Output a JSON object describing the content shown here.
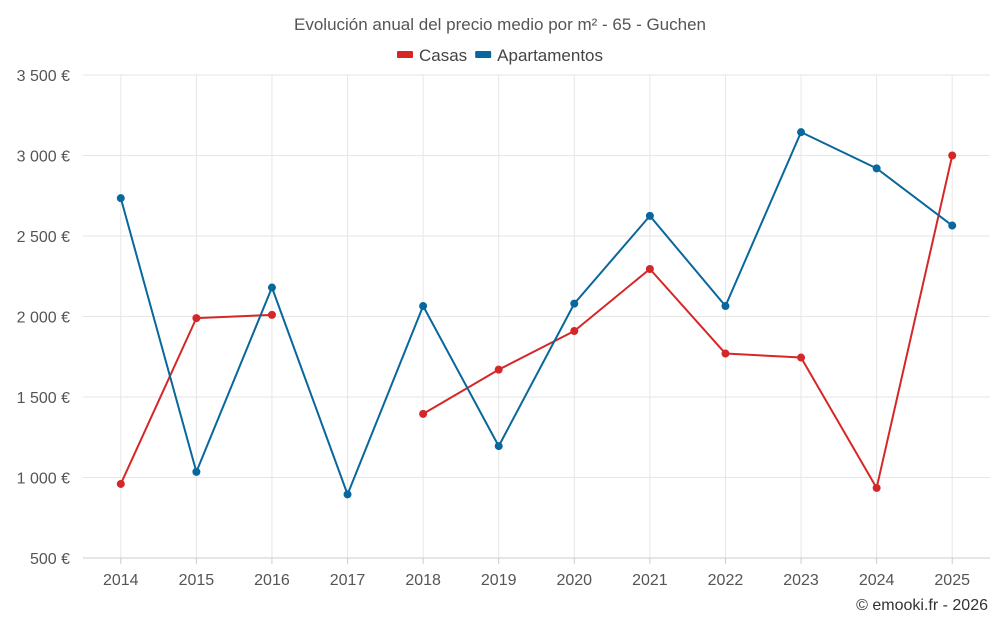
{
  "chart_data": {
    "type": "line",
    "title": "Evolución anual del precio medio por m² - 65 - Guchen",
    "x": [
      "2014",
      "2015",
      "2016",
      "2017",
      "2018",
      "2019",
      "2020",
      "2021",
      "2022",
      "2023",
      "2024",
      "2025"
    ],
    "ylim": [
      500,
      3500
    ],
    "yticks": [
      500,
      1000,
      1500,
      2000,
      2500,
      3000,
      3500
    ],
    "ytick_labels": [
      "500 €",
      "1 000 €",
      "1 500 €",
      "2 000 €",
      "2 500 €",
      "3 000 €",
      "3 500 €"
    ],
    "grid": true,
    "legend_position": "top-center",
    "series": [
      {
        "name": "Casas",
        "color": "#d62728",
        "values": [
          960,
          1990,
          2010,
          null,
          1395,
          1670,
          1910,
          2295,
          1770,
          1745,
          935,
          3000
        ]
      },
      {
        "name": "Apartamentos",
        "color": "#08679c",
        "values": [
          2735,
          1035,
          2180,
          895,
          2065,
          1195,
          2080,
          2625,
          2065,
          3145,
          2920,
          2565
        ]
      }
    ]
  },
  "credit": "© emooki.fr - 2026"
}
